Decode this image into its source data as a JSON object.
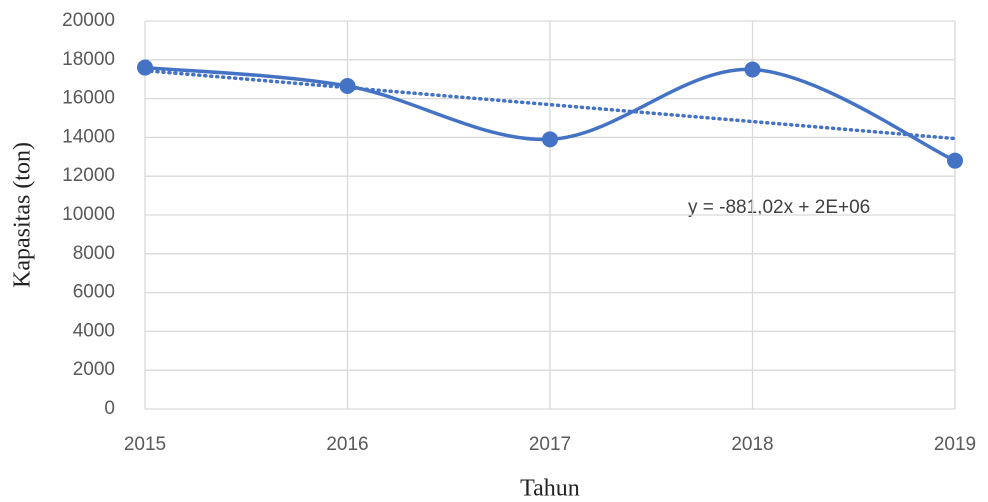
{
  "chart_data": {
    "type": "line",
    "x_label": "Tahun",
    "y_label": "Kapasitas (ton)",
    "x": [
      2015,
      2016,
      2017,
      2018,
      2019
    ],
    "series": [
      {
        "name": "Kapasitas",
        "color": "#4472c4",
        "values": [
          17600,
          16650,
          13900,
          17500,
          12800
        ]
      }
    ],
    "smooth": true,
    "trendline": "linear",
    "trendline_style": "dotted",
    "annotation": "y = -881,02x + 2E+06",
    "xlim": [
      2015,
      2019
    ],
    "xticks": [
      2015,
      2016,
      2017,
      2018,
      2019
    ],
    "ylim": [
      0,
      20000
    ],
    "yticks": [
      0,
      2000,
      4000,
      6000,
      8000,
      10000,
      12000,
      14000,
      16000,
      18000,
      20000
    ],
    "grid": true
  }
}
